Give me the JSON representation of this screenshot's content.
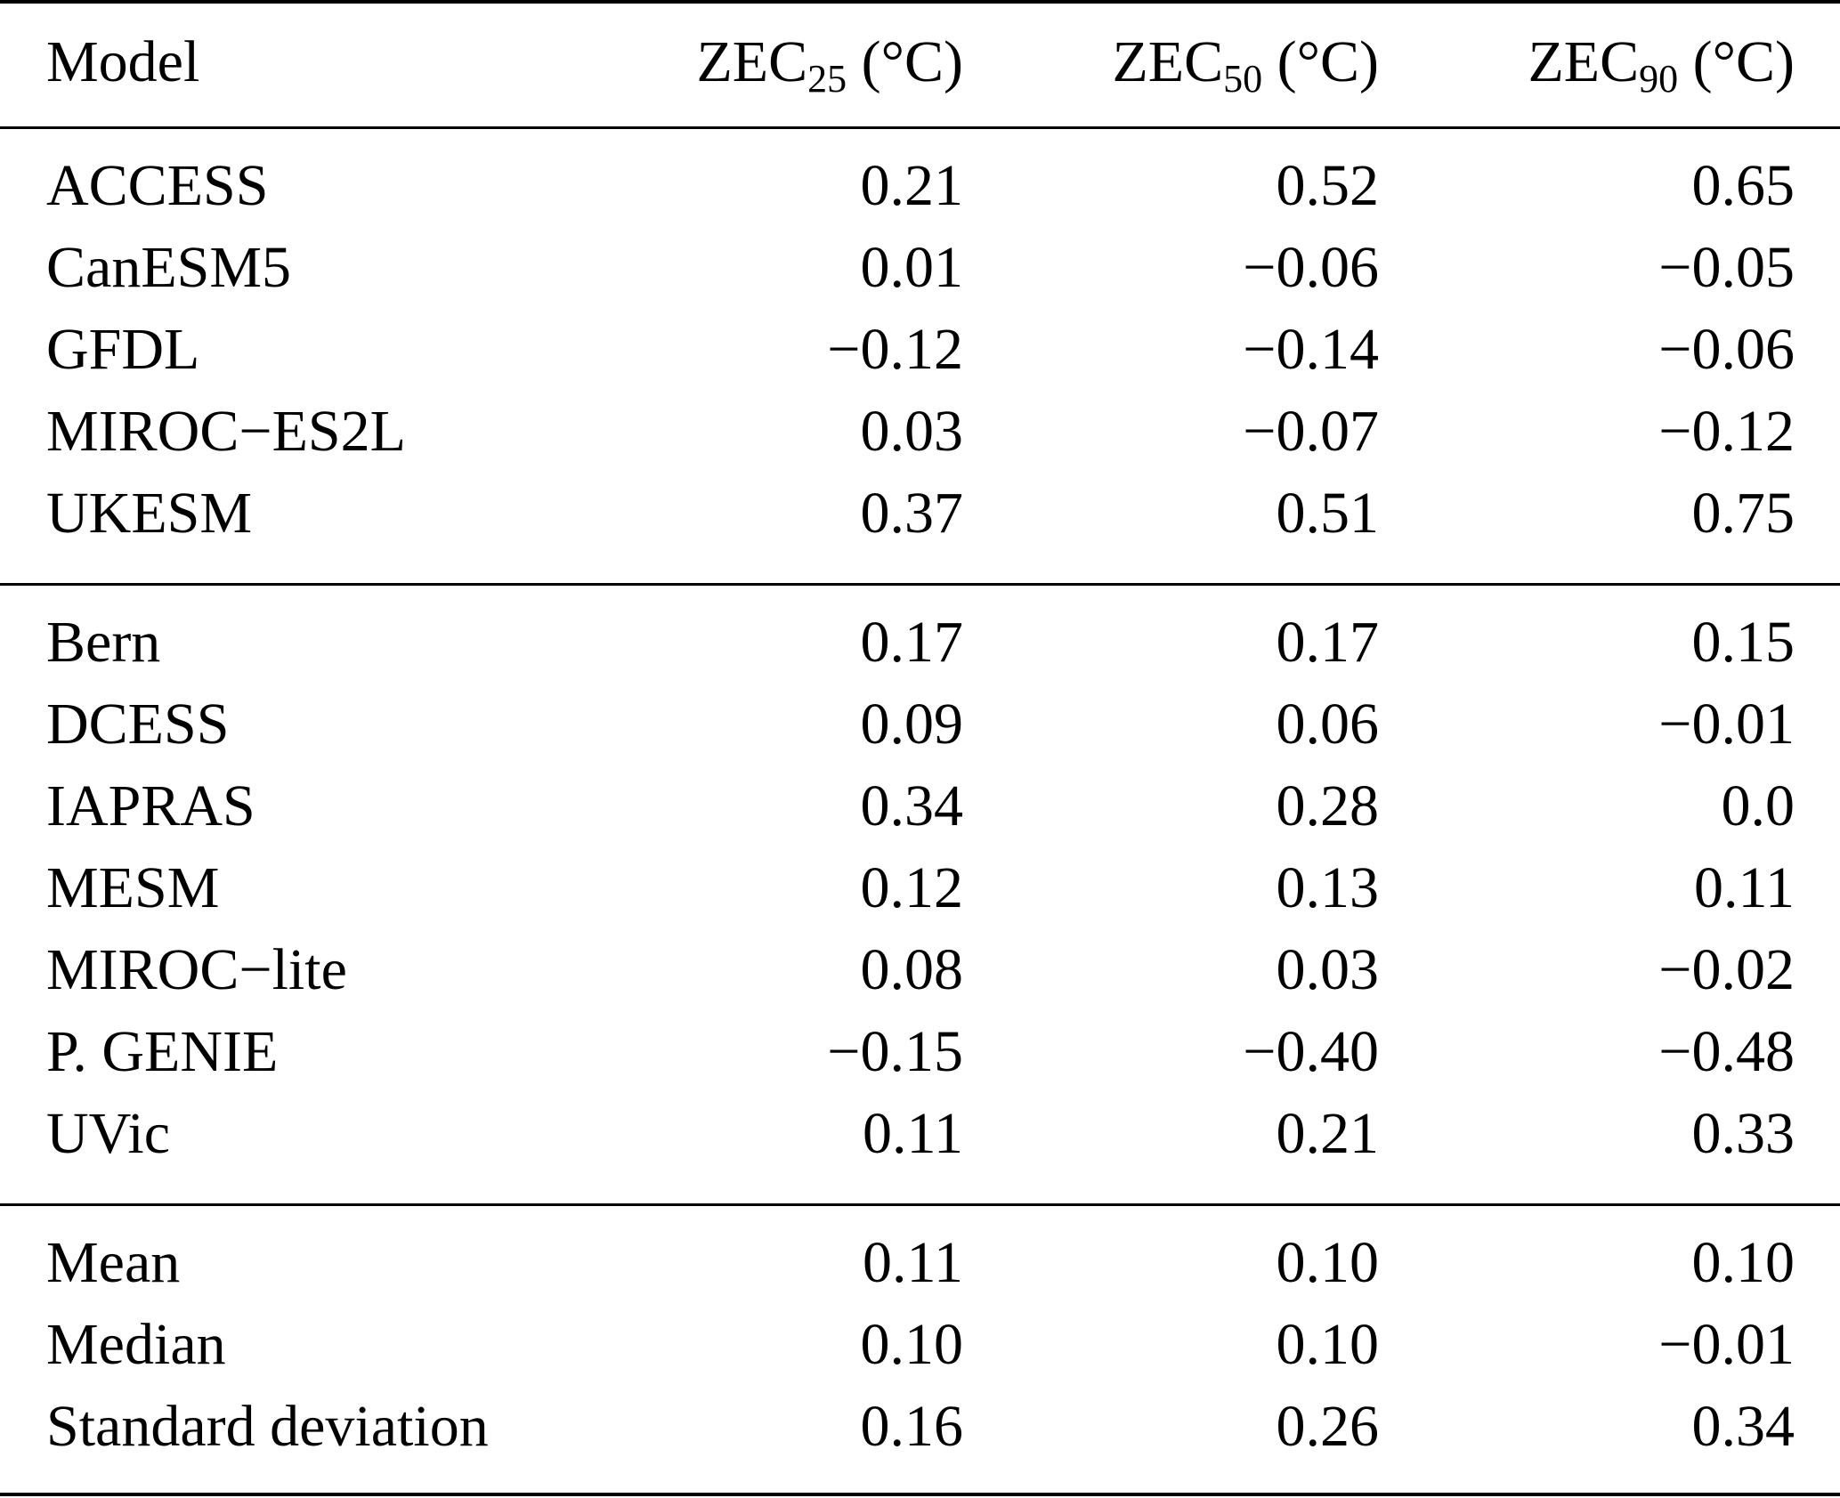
{
  "table": {
    "headers": [
      {
        "text": "Model",
        "base": "",
        "sub": "",
        "unit": ""
      },
      {
        "text": "",
        "base": "ZEC",
        "sub": "25",
        "unit": " (°C)"
      },
      {
        "text": "",
        "base": "ZEC",
        "sub": "50",
        "unit": " (°C)"
      },
      {
        "text": "",
        "base": "ZEC",
        "sub": "90",
        "unit": " (°C)"
      }
    ],
    "groups": [
      {
        "rows": [
          {
            "model": "ACCESS",
            "zec25": "0.21",
            "zec50": "0.52",
            "zec90": "0.65"
          },
          {
            "model": "CanESM5",
            "zec25": "0.01",
            "zec50": "−0.06",
            "zec90": "−0.05"
          },
          {
            "model": "GFDL",
            "zec25": "−0.12",
            "zec50": "−0.14",
            "zec90": "−0.06"
          },
          {
            "model": "MIROC−ES2L",
            "zec25": "0.03",
            "zec50": "−0.07",
            "zec90": "−0.12"
          },
          {
            "model": "UKESM",
            "zec25": "0.37",
            "zec50": "0.51",
            "zec90": "0.75"
          }
        ]
      },
      {
        "rows": [
          {
            "model": "Bern",
            "zec25": "0.17",
            "zec50": "0.17",
            "zec90": "0.15"
          },
          {
            "model": "DCESS",
            "zec25": "0.09",
            "zec50": "0.06",
            "zec90": "−0.01"
          },
          {
            "model": "IAPRAS",
            "zec25": "0.34",
            "zec50": "0.28",
            "zec90": "0.0"
          },
          {
            "model": "MESM",
            "zec25": "0.12",
            "zec50": "0.13",
            "zec90": "0.11"
          },
          {
            "model": "MIROC−lite",
            "zec25": "0.08",
            "zec50": "0.03",
            "zec90": "−0.02"
          },
          {
            "model": "P. GENIE",
            "zec25": "−0.15",
            "zec50": "−0.40",
            "zec90": "−0.48"
          },
          {
            "model": "UVic",
            "zec25": "0.11",
            "zec50": "0.21",
            "zec90": "0.33"
          }
        ]
      },
      {
        "rows": [
          {
            "model": "Mean",
            "zec25": "0.11",
            "zec50": "0.10",
            "zec90": "0.10"
          },
          {
            "model": "Median",
            "zec25": "0.10",
            "zec50": "0.10",
            "zec90": "−0.01"
          },
          {
            "model": "Standard deviation",
            "zec25": "0.16",
            "zec50": "0.26",
            "zec90": "0.34"
          }
        ]
      }
    ]
  }
}
